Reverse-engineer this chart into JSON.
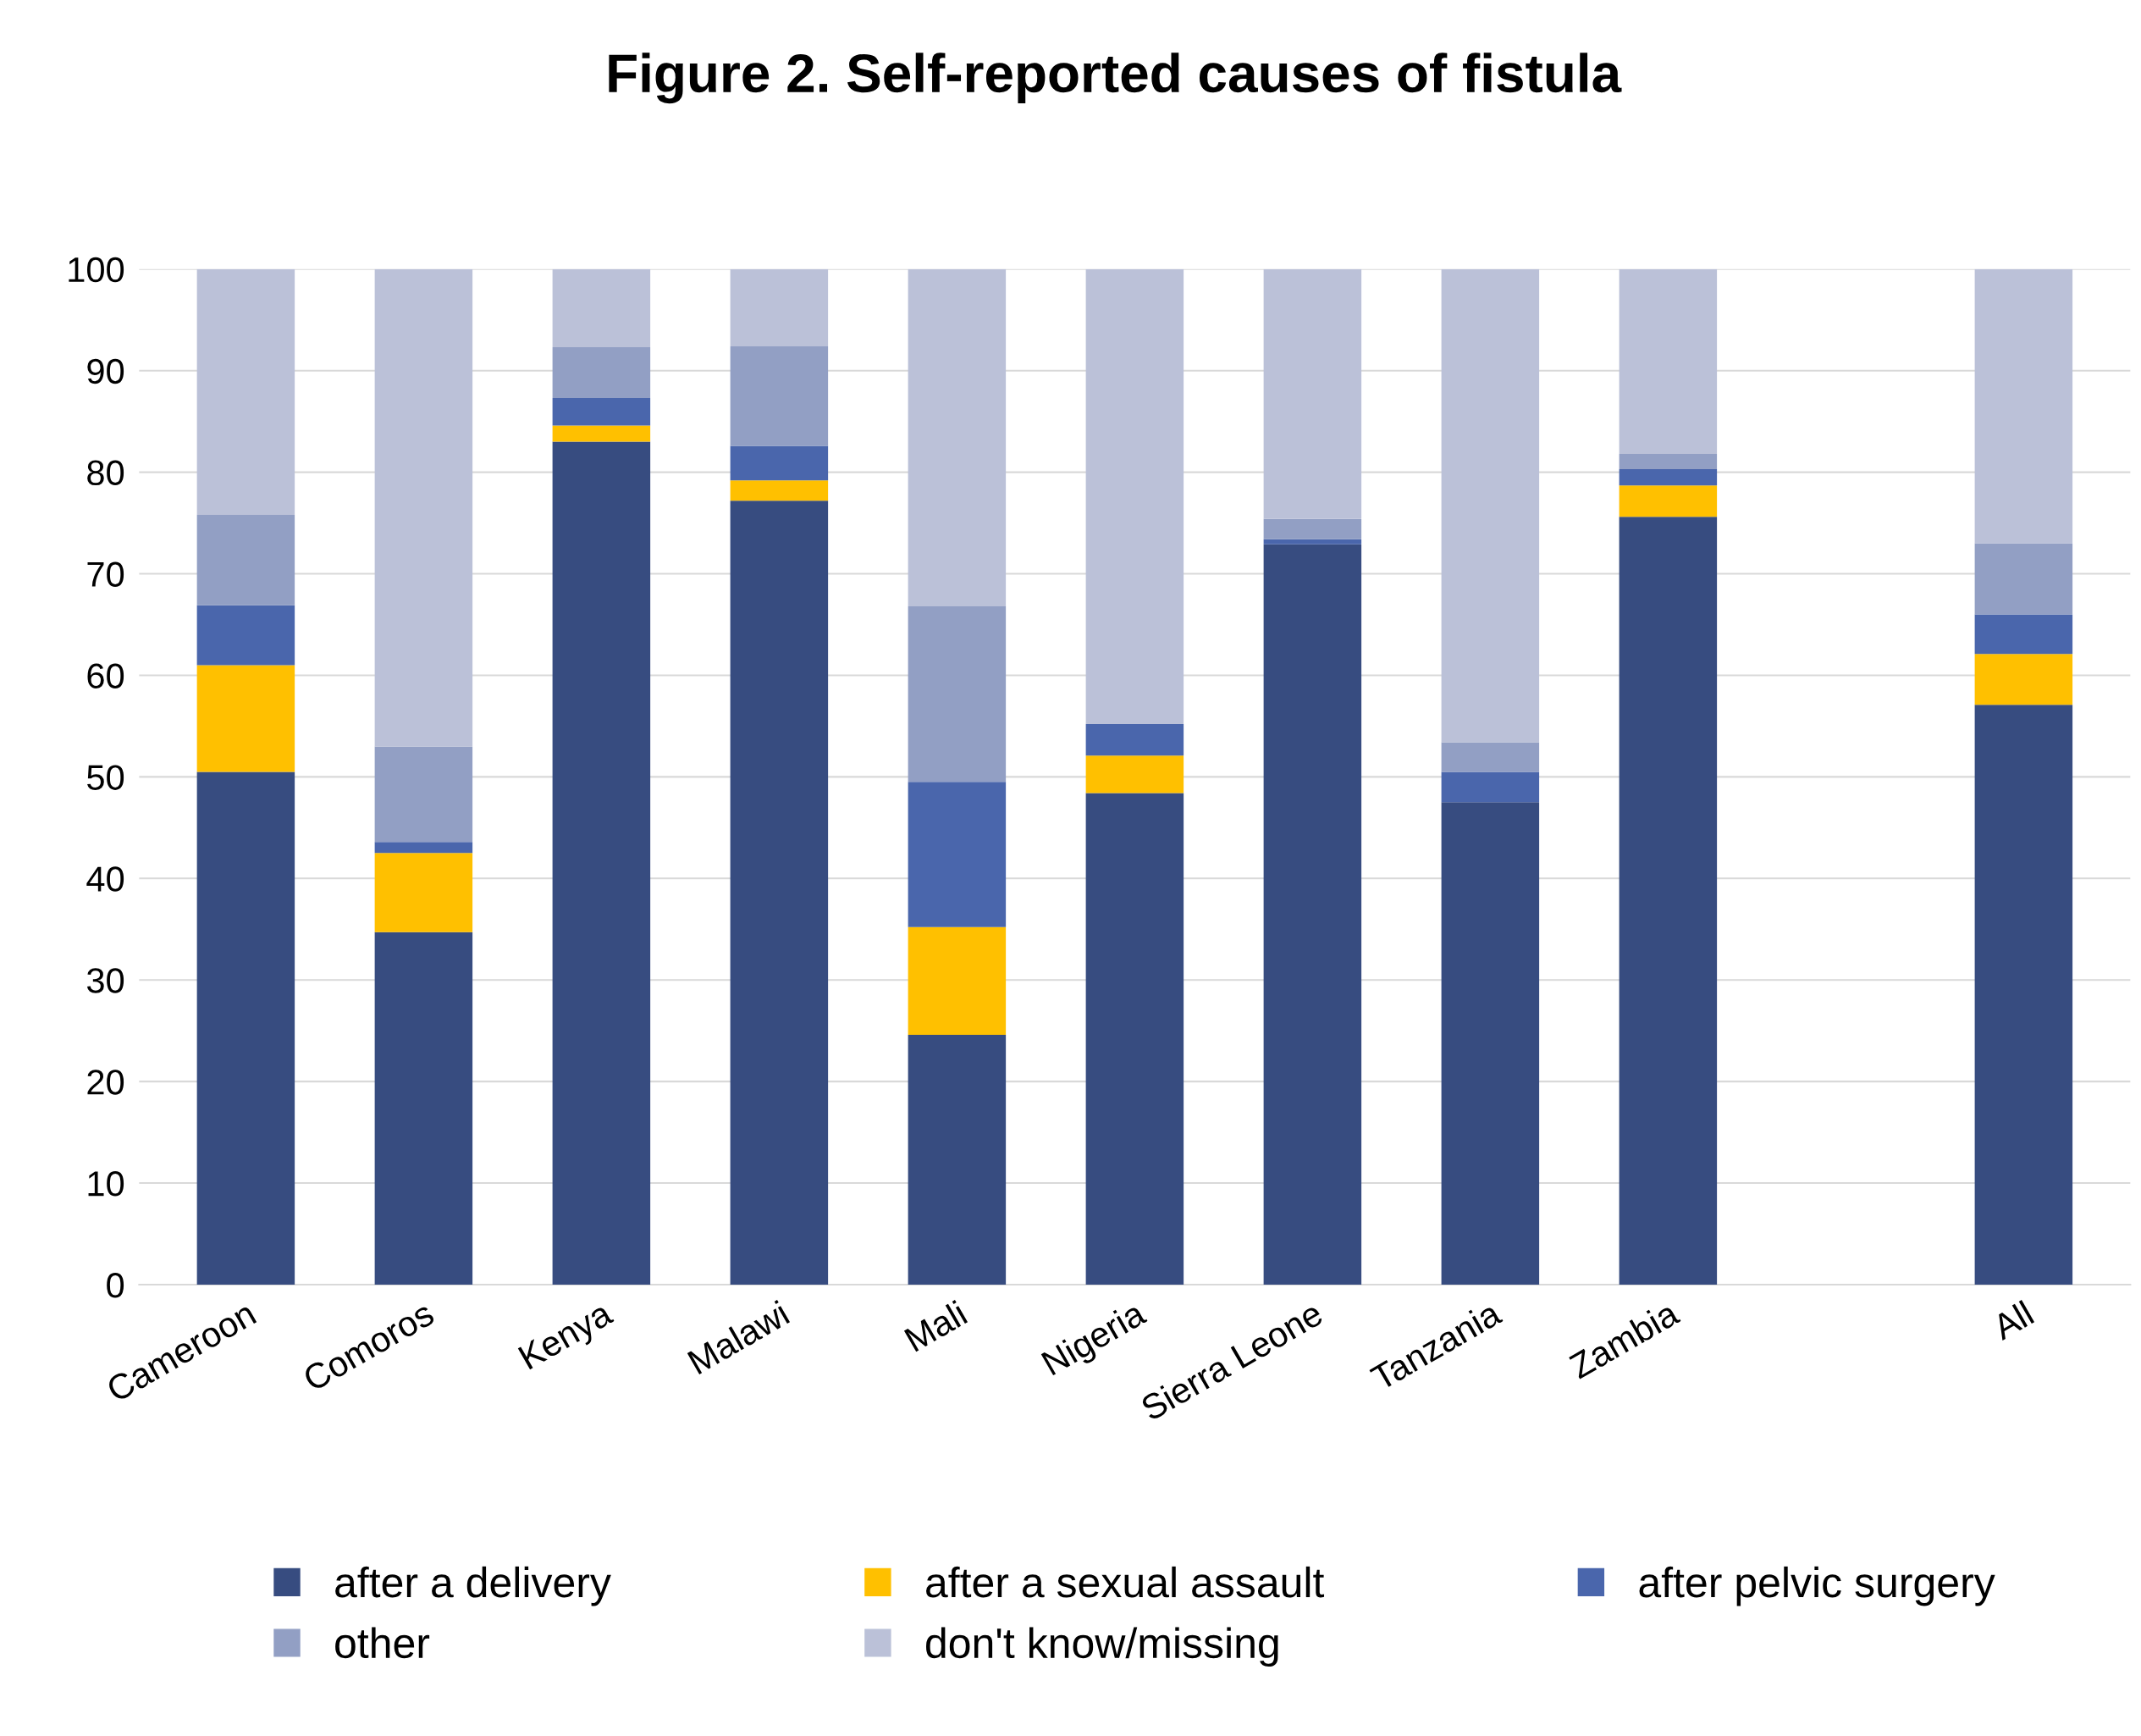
{
  "chart_data": {
    "type": "bar",
    "title": "Figure 2. Self-reported causes of fistula",
    "categories": [
      "Cameroon",
      "Comoros",
      "Kenya",
      "Malawi",
      "Mali",
      "Nigeria",
      "Sierra Leone",
      "Tanzania",
      "Zambia",
      null,
      "All"
    ],
    "stacked": true,
    "series": [
      {
        "name": "after a delivery",
        "color": "#374c80",
        "values": [
          50.5,
          34.7,
          83.0,
          77.2,
          24.6,
          48.4,
          72.9,
          47.5,
          75.6,
          null,
          57.1
        ]
      },
      {
        "name": "after a sexual assault",
        "color": "#ffc000",
        "values": [
          10.5,
          7.8,
          1.6,
          2.0,
          10.6,
          3.7,
          0,
          0,
          3.1,
          null,
          5.0
        ]
      },
      {
        "name": "after pelvic surgery",
        "color": "#4a66ac",
        "values": [
          5.9,
          1.1,
          2.7,
          3.4,
          14.3,
          3.1,
          0.5,
          3.0,
          1.6,
          null,
          3.9
        ]
      },
      {
        "name": "other",
        "color": "#929fc4",
        "values": [
          8.9,
          9.4,
          5.0,
          9.8,
          17.3,
          0,
          2.0,
          2.9,
          1.5,
          null,
          7.0
        ]
      },
      {
        "name": "don't know/missing",
        "color": "#bbc1d8",
        "values": [
          24.2,
          47.0,
          7.7,
          7.6,
          33.2,
          44.8,
          24.6,
          46.6,
          18.2,
          null,
          27.0
        ]
      }
    ],
    "ylim": [
      0,
      100
    ],
    "yticks": [
      0,
      10,
      20,
      30,
      40,
      50,
      60,
      70,
      80,
      90,
      100
    ],
    "grid": "y",
    "legend": "bottom"
  }
}
